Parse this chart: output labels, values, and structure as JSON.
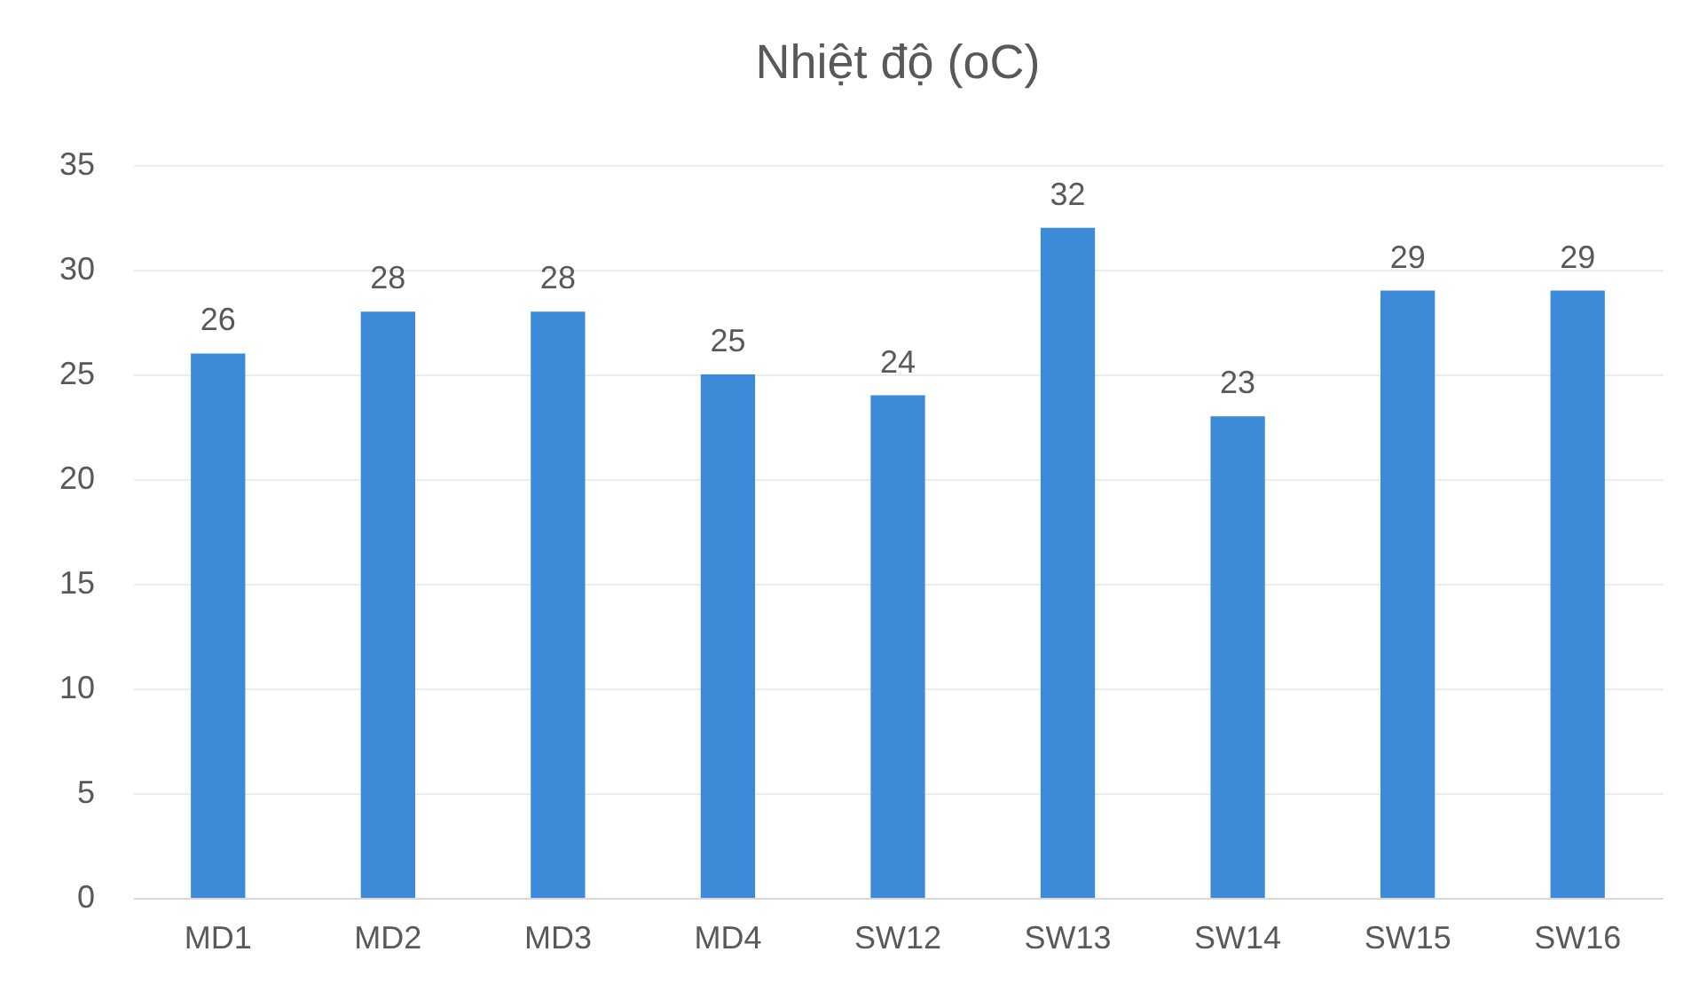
{
  "chart_data": {
    "type": "bar",
    "title": "Nhiệt độ (oC)",
    "categories": [
      "MD1",
      "MD2",
      "MD3",
      "MD4",
      "SW12",
      "SW13",
      "SW14",
      "SW15",
      "SW16"
    ],
    "values": [
      26,
      28,
      28,
      25,
      24,
      32,
      23,
      29,
      29
    ],
    "color": "#3d8bd8",
    "ylim": [
      0,
      35
    ],
    "yticks": [
      0,
      5,
      10,
      15,
      20,
      25,
      30,
      35
    ],
    "grid": "y",
    "data_labels": true
  }
}
